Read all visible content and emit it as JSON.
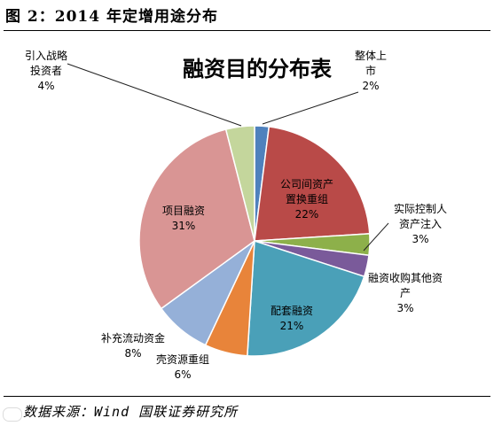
{
  "figure": {
    "title": "图 2：2014 年定增用途分布",
    "source": "数据来源：Wind 国联证券研究所"
  },
  "chart_data": {
    "type": "pie",
    "title": "融资目的分布表",
    "slices": [
      {
        "name": "整体上市",
        "label_lines": [
          "整体上",
          "市"
        ],
        "pct": "2%",
        "value": 2,
        "color": "#4f81bd"
      },
      {
        "name": "公司间资产置换重组",
        "label_lines": [
          "公司间资产",
          "置换重组"
        ],
        "pct": "22%",
        "value": 22,
        "color": "#b94a48"
      },
      {
        "name": "实际控制人资产注入",
        "label_lines": [
          "实际控制人",
          "资产注入"
        ],
        "pct": "3%",
        "value": 3,
        "color": "#8db04a"
      },
      {
        "name": "融资收购其他资产",
        "label_lines": [
          "融资收购其他资",
          "产"
        ],
        "pct": "3%",
        "value": 3,
        "color": "#7a5a9a"
      },
      {
        "name": "配套融资",
        "label_lines": [
          "配套融资"
        ],
        "pct": "21%",
        "value": 21,
        "color": "#4aa0b8"
      },
      {
        "name": "壳资源重组",
        "label_lines": [
          "壳资源重组"
        ],
        "pct": "6%",
        "value": 6,
        "color": "#e8843a"
      },
      {
        "name": "补充流动资金",
        "label_lines": [
          "补充流动资金"
        ],
        "pct": "8%",
        "value": 8,
        "color": "#95b0d8"
      },
      {
        "name": "项目融资",
        "label_lines": [
          "项目融资"
        ],
        "pct": "31%",
        "value": 31,
        "color": "#d99594"
      },
      {
        "name": "引入战略投资者",
        "label_lines": [
          "引入战略",
          "投资者"
        ],
        "pct": "4%",
        "value": 4,
        "color": "#c4d69c"
      }
    ]
  }
}
